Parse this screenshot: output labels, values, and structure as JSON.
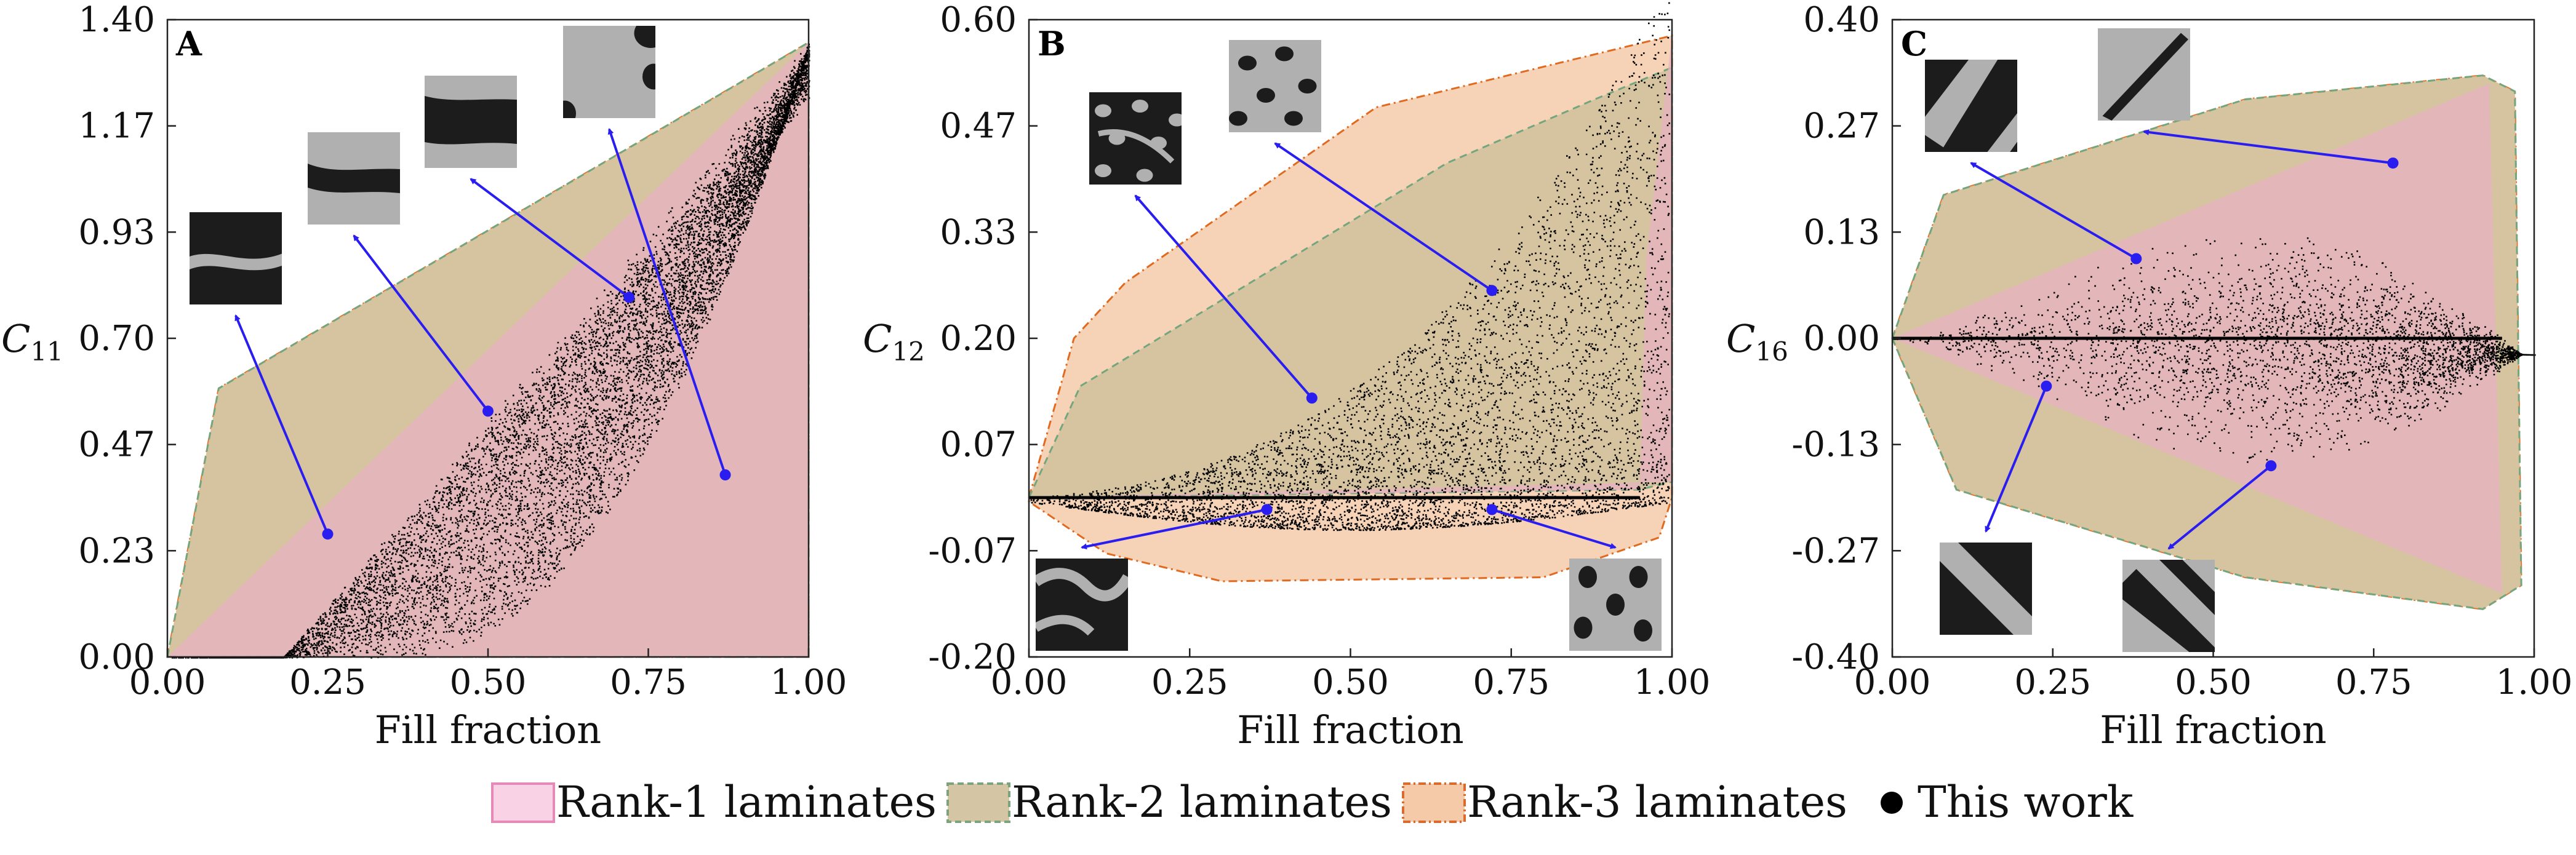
{
  "chart_data": [
    {
      "type": "scatter",
      "panel_label": "A",
      "xlabel": "Fill fraction",
      "ylabel": "C",
      "ylabel_sub": "11",
      "xlim": [
        0,
        1
      ],
      "ylim": [
        0,
        1.4
      ],
      "xticks": [
        "0.00",
        "0.25",
        "0.50",
        "0.75",
        "1.00"
      ],
      "yticks": [
        "0.00",
        "0.23",
        "0.47",
        "0.70",
        "0.93",
        "1.17",
        "1.40"
      ],
      "regions": {
        "rank3": [
          [
            0,
            0
          ],
          [
            0.08,
            0.59
          ],
          [
            1.0,
            1.35
          ],
          [
            1.0,
            0.0
          ]
        ],
        "rank2": [
          [
            0,
            0
          ],
          [
            0.08,
            0.59
          ],
          [
            1.0,
            1.35
          ],
          [
            1.0,
            0.0
          ]
        ],
        "rank1": [
          [
            0,
            0
          ],
          [
            1.0,
            1.35
          ],
          [
            1.0,
            0.0
          ]
        ]
      },
      "scatter_model": "upper_triangle",
      "highlighted_points": [
        {
          "x": 0.25,
          "y": 0.27,
          "inset": "horizontal-band-wavy-thin"
        },
        {
          "x": 0.5,
          "y": 0.54,
          "inset": "horizontal-band-wavy-thick"
        },
        {
          "x": 0.72,
          "y": 0.79,
          "inset": "horizontal-band-dark-thick"
        },
        {
          "x": 0.87,
          "y": 0.4,
          "inset": "gray-with-dark-notches"
        }
      ]
    },
    {
      "type": "scatter",
      "panel_label": "B",
      "xlabel": "Fill fraction",
      "ylabel": "C",
      "ylabel_sub": "12",
      "xlim": [
        0,
        1
      ],
      "ylim": [
        -0.2,
        0.6
      ],
      "xticks": [
        "0.00",
        "0.25",
        "0.50",
        "0.75",
        "1.00"
      ],
      "yticks": [
        "-0.20",
        "-0.07",
        "0.07",
        "0.20",
        "0.33",
        "0.47",
        "0.60"
      ],
      "regions": {
        "rank3": [
          [
            0,
            0
          ],
          [
            0.07,
            0.2
          ],
          [
            0.15,
            0.27
          ],
          [
            0.54,
            0.49
          ],
          [
            1.0,
            0.58
          ],
          [
            1.0,
            0.0
          ],
          [
            0.98,
            -0.05
          ],
          [
            0.8,
            -0.1
          ],
          [
            0.3,
            -0.105
          ],
          [
            0.12,
            -0.07
          ],
          [
            0,
            -0.005
          ]
        ],
        "rank2": [
          [
            0,
            0
          ],
          [
            0.08,
            0.14
          ],
          [
            0.65,
            0.42
          ],
          [
            0.88,
            0.5
          ],
          [
            1.0,
            0.54
          ],
          [
            1.0,
            0.02
          ],
          [
            0.95,
            0.01
          ],
          [
            0,
            0.0
          ]
        ],
        "rank1": [
          [
            0,
            0
          ],
          [
            0.95,
            0.01
          ],
          [
            0.96,
            0.3
          ],
          [
            1.0,
            0.58
          ],
          [
            1.0,
            0.02
          ]
        ]
      },
      "scatter_model": "c12_band",
      "highlighted_points": [
        {
          "x": 0.44,
          "y": 0.125,
          "inset": "dark-blobs-network"
        },
        {
          "x": 0.72,
          "y": 0.26,
          "inset": "gray-with-dark-spots"
        },
        {
          "x": 0.37,
          "y": -0.015,
          "inset": "dark-with-gray-channels"
        },
        {
          "x": 0.72,
          "y": -0.015,
          "inset": "gray-dark-dots"
        }
      ]
    },
    {
      "type": "scatter",
      "panel_label": "C",
      "xlabel": "Fill fraction",
      "ylabel": "C",
      "ylabel_sub": "16",
      "xlim": [
        0,
        1
      ],
      "ylim": [
        -0.4,
        0.4
      ],
      "xticks": [
        "0.00",
        "0.25",
        "0.50",
        "0.75",
        "1.00"
      ],
      "yticks": [
        "-0.40",
        "-0.27",
        "-0.13",
        "0.00",
        "0.13",
        "0.27",
        "0.40"
      ],
      "regions": {
        "rank3": [
          [
            0,
            0
          ],
          [
            0.08,
            0.18
          ],
          [
            0.55,
            0.3
          ],
          [
            0.92,
            0.33
          ],
          [
            0.97,
            0.31
          ],
          [
            0.98,
            -0.31
          ],
          [
            0.92,
            -0.34
          ],
          [
            0.55,
            -0.3
          ],
          [
            0.1,
            -0.19
          ],
          [
            0,
            0
          ]
        ],
        "rank2": [
          [
            0,
            0
          ],
          [
            0.08,
            0.18
          ],
          [
            0.55,
            0.3
          ],
          [
            0.92,
            0.33
          ],
          [
            0.97,
            0.31
          ],
          [
            0.98,
            -0.31
          ],
          [
            0.92,
            -0.34
          ],
          [
            0.55,
            -0.3
          ],
          [
            0.1,
            -0.19
          ],
          [
            0,
            0
          ]
        ],
        "rank1": [
          [
            0,
            0
          ],
          [
            0.93,
            0.32
          ],
          [
            0.95,
            -0.32
          ],
          [
            0,
            0
          ]
        ]
      },
      "scatter_model": "c16_lens",
      "highlighted_points": [
        {
          "x": 0.38,
          "y": 0.1,
          "inset": "diagonal-band-gray"
        },
        {
          "x": 0.78,
          "y": 0.22,
          "inset": "diagonal-thin-dark"
        },
        {
          "x": 0.24,
          "y": -0.06,
          "inset": "diagonal-stripes-dark"
        },
        {
          "x": 0.59,
          "y": -0.16,
          "inset": "diagonal-stripes-gray"
        }
      ]
    }
  ],
  "legend": {
    "items": [
      {
        "label": "Rank-1 laminates",
        "color": "#f9d2e6",
        "edge": "#e58ab8"
      },
      {
        "label": "Rank-2 laminates",
        "color": "#d4c5a4",
        "edge": "#7ca37c"
      },
      {
        "label": "Rank-3 laminates",
        "color": "#f5caa9",
        "edge": "#d96b2e"
      },
      {
        "label": "This work",
        "color": "#000000"
      }
    ],
    "placement": "bottom-center"
  },
  "colors": {
    "rank1_fill": "#e7b2c2",
    "rank2_fill": "#d3c29d",
    "rank3_fill": "#f5caa9",
    "rank3_edge": "#e06a1f",
    "rank2_edge": "#73a67e",
    "arrow": "#2a1df0",
    "inset_dark": "#1c1c1c",
    "inset_gray": "#b0b0b0"
  }
}
